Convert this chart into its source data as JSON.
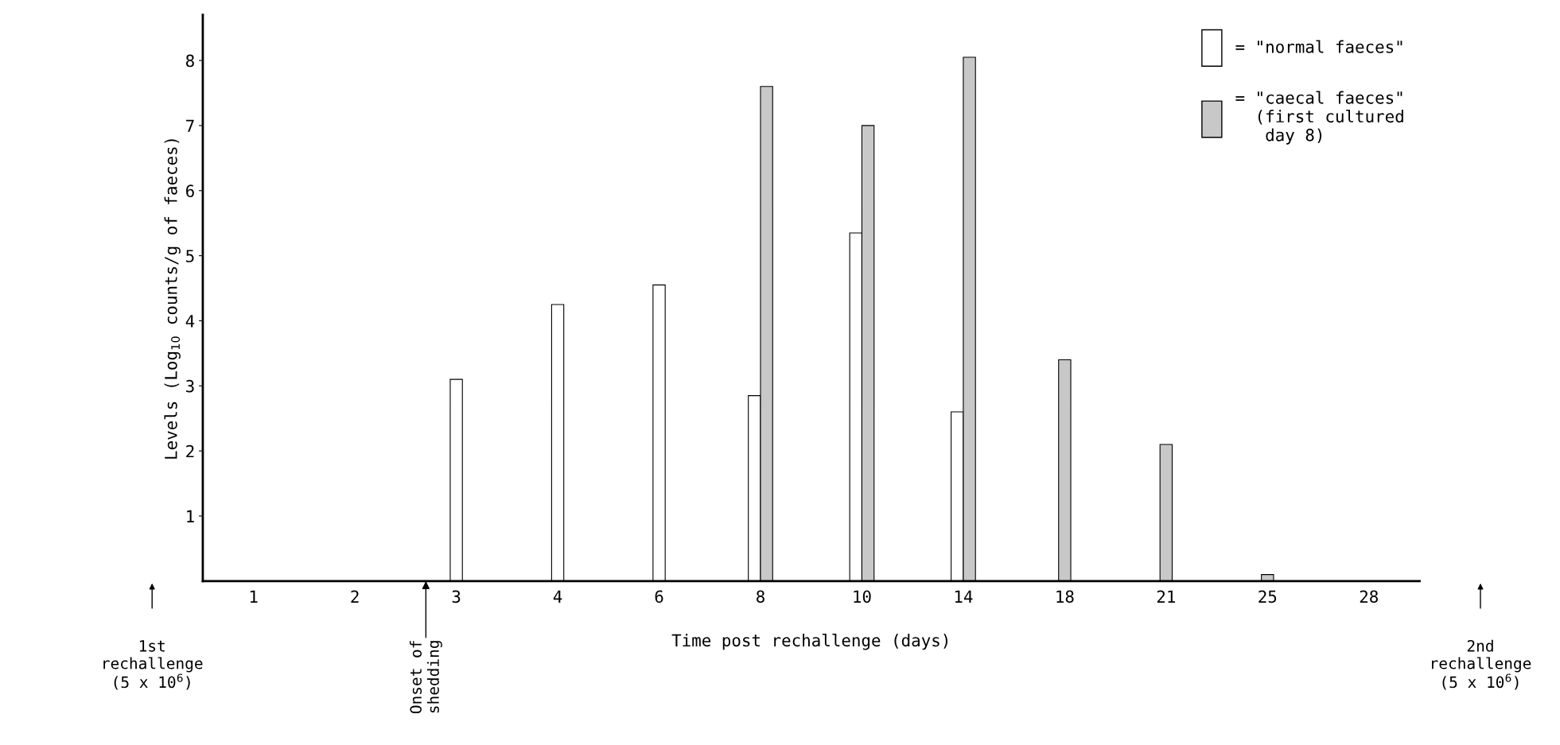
{
  "chart_data": {
    "type": "bar",
    "xlabel": "Time post rechallenge (days)",
    "ylabel": "Levels (Log$_{10}$ counts/g of faeces)",
    "categories": [
      "1",
      "2",
      "3",
      "4",
      "6",
      "8",
      "10",
      "14",
      "18",
      "21",
      "25",
      "28"
    ],
    "series": [
      {
        "name": "= \"normal faeces\"",
        "color": "#ffffff",
        "values": [
          null,
          null,
          3.1,
          4.25,
          4.55,
          2.85,
          5.35,
          2.6,
          null,
          null,
          null,
          null
        ]
      },
      {
        "name": "= \"caecal faeces\"\n  (first cultured\n   day 8)",
        "color": "#c8c8c8",
        "values": [
          null,
          null,
          null,
          null,
          null,
          7.6,
          7.0,
          8.05,
          3.4,
          2.1,
          0.1,
          null
        ]
      }
    ],
    "ylim": [
      0,
      8.7
    ],
    "yticks": [
      1,
      2,
      3,
      4,
      5,
      6,
      7,
      8
    ],
    "grid": false,
    "legend": "top right",
    "annotations": [
      "1st\nrechallenge\n(5 x 10$^{6}$)",
      "Onset of\nshedding",
      "2nd\nrechallenge\n(5 x 10$^{6}$)"
    ]
  }
}
